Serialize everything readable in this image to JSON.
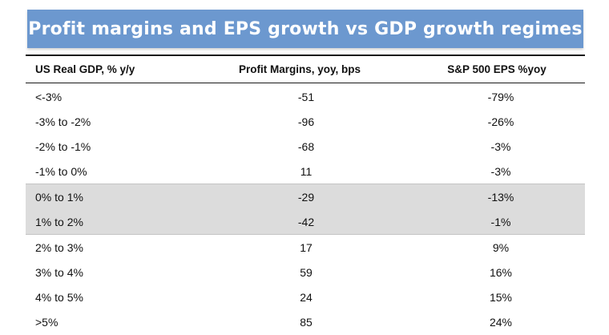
{
  "title": "Profit margins and EPS growth vs GDP growth regimes",
  "table": {
    "headers": {
      "gdp": "US Real GDP, % y/y",
      "margin": "Profit Margins, yoy, bps",
      "eps": "S&P 500 EPS %yoy"
    },
    "rows": [
      {
        "gdp": "<-3%",
        "margin": "-51",
        "eps": "-79%",
        "highlighted": false
      },
      {
        "gdp": "-3% to -2%",
        "margin": "-96",
        "eps": "-26%",
        "highlighted": false
      },
      {
        "gdp": "-2% to -1%",
        "margin": "-68",
        "eps": "-3%",
        "highlighted": false
      },
      {
        "gdp": "-1% to 0%",
        "margin": "11",
        "eps": "-3%",
        "highlighted": false
      },
      {
        "gdp": "0% to 1%",
        "margin": "-29",
        "eps": "-13%",
        "highlighted": true
      },
      {
        "gdp": "1% to 2%",
        "margin": "-42",
        "eps": "-1%",
        "highlighted": true
      },
      {
        "gdp": "2% to 3%",
        "margin": "17",
        "eps": "9%",
        "highlighted": false
      },
      {
        "gdp": "3% to 4%",
        "margin": "59",
        "eps": "16%",
        "highlighted": false
      },
      {
        "gdp": "4% to 5%",
        "margin": "24",
        "eps": "15%",
        "highlighted": false
      },
      {
        "gdp": ">5%",
        "margin": "85",
        "eps": "24%",
        "highlighted": false
      }
    ]
  },
  "colors": {
    "title_background": "#6c98cf",
    "title_text": "#ffffff",
    "highlight_row": "#dcdcdc"
  }
}
